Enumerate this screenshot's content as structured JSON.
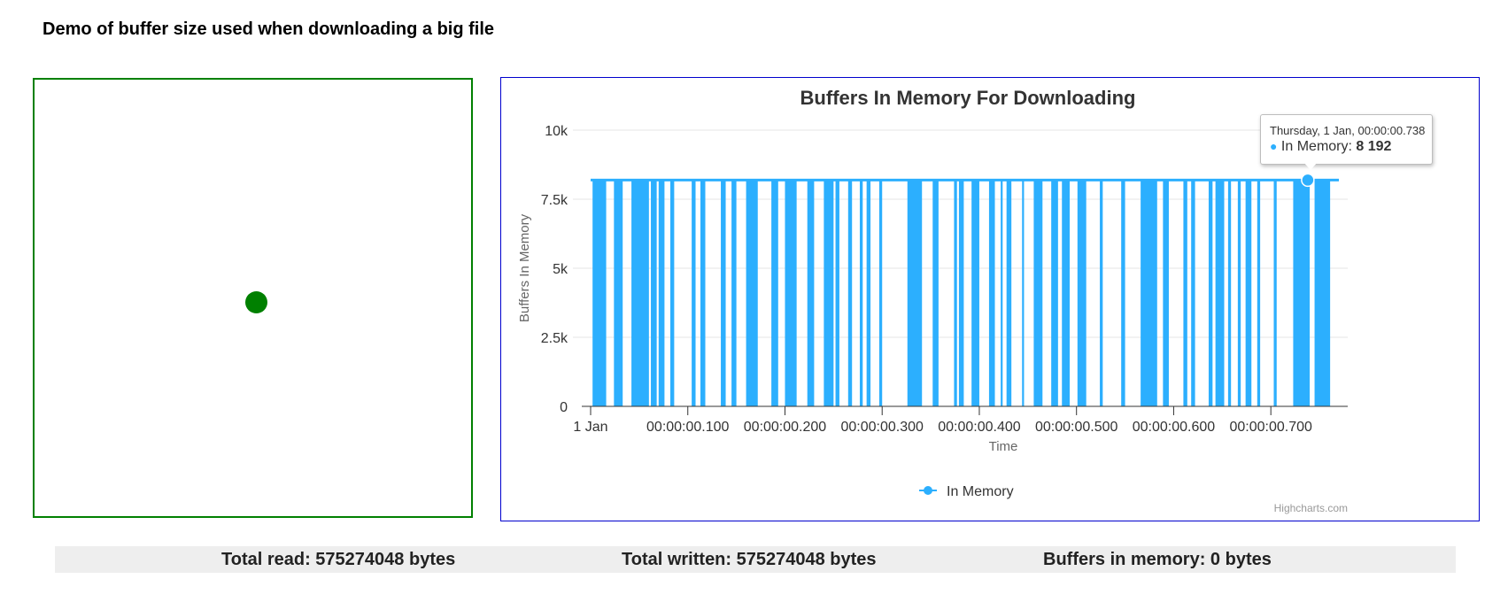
{
  "page": {
    "title": "Demo of buffer size used when downloading a big file"
  },
  "colors": {
    "green": "#008000",
    "series": "#2caffe",
    "chart_border": "#0000cd"
  },
  "stats": {
    "total_read": "Total read: 575274048 bytes",
    "total_written": "Total written: 575274048 bytes",
    "buffers_in_memory": "Buffers in memory: 0 bytes"
  },
  "tooltip": {
    "header": "Thursday, 1 Jan, 00:00:00.738",
    "series_label": "In Memory: ",
    "value_label": "8 192",
    "x": 0.738,
    "y": 8192
  },
  "chart_data": {
    "type": "area",
    "title": "Buffers In Memory For Downloading",
    "xlabel": "Time",
    "ylabel": "Buffers In Memory",
    "credits": "Highcharts.com",
    "xlim": [
      0,
      0.77
    ],
    "ylim": [
      0,
      10000
    ],
    "y_ticks": [
      0,
      2500,
      5000,
      7500,
      10000
    ],
    "y_tick_labels": [
      "0",
      "2.5k",
      "5k",
      "7.5k",
      "10k"
    ],
    "x_ticks": [
      0,
      0.1,
      0.2,
      0.3,
      0.4,
      0.5,
      0.6,
      0.7
    ],
    "x_tick_labels": [
      "1 Jan",
      "00:00:00.100",
      "00:00:00.200",
      "00:00:00.300",
      "00:00:00.400",
      "00:00:00.500",
      "00:00:00.600",
      "00:00:00.700"
    ],
    "legend": {
      "position": "bottom-center",
      "entries": [
        "In Memory"
      ]
    },
    "series": [
      {
        "name": "In Memory",
        "level": 8192,
        "filled_intervals": [
          [
            0.002,
            0.016
          ],
          [
            0.024,
            0.033
          ],
          [
            0.042,
            0.06
          ],
          [
            0.062,
            0.068
          ],
          [
            0.07,
            0.076
          ],
          [
            0.082,
            0.086
          ],
          [
            0.104,
            0.108
          ],
          [
            0.113,
            0.118
          ],
          [
            0.134,
            0.139
          ],
          [
            0.145,
            0.15
          ],
          [
            0.16,
            0.172
          ],
          [
            0.186,
            0.193
          ],
          [
            0.2,
            0.212
          ],
          [
            0.223,
            0.23
          ],
          [
            0.24,
            0.25
          ],
          [
            0.252,
            0.256
          ],
          [
            0.265,
            0.269
          ],
          [
            0.277,
            0.28
          ],
          [
            0.284,
            0.288
          ],
          [
            0.297,
            0.3
          ],
          [
            0.326,
            0.341
          ],
          [
            0.352,
            0.358
          ],
          [
            0.374,
            0.377
          ],
          [
            0.379,
            0.384
          ],
          [
            0.392,
            0.4
          ],
          [
            0.41,
            0.416
          ],
          [
            0.422,
            0.424
          ],
          [
            0.428,
            0.433
          ],
          [
            0.444,
            0.446
          ],
          [
            0.456,
            0.465
          ],
          [
            0.474,
            0.481
          ],
          [
            0.485,
            0.493
          ],
          [
            0.501,
            0.51
          ],
          [
            0.524,
            0.527
          ],
          [
            0.546,
            0.55
          ],
          [
            0.566,
            0.583
          ],
          [
            0.589,
            0.595
          ],
          [
            0.61,
            0.614
          ],
          [
            0.618,
            0.622
          ],
          [
            0.636,
            0.64
          ],
          [
            0.643,
            0.652
          ],
          [
            0.656,
            0.659
          ],
          [
            0.666,
            0.669
          ],
          [
            0.674,
            0.68
          ],
          [
            0.686,
            0.689
          ],
          [
            0.703,
            0.706
          ],
          [
            0.723,
            0.74
          ],
          [
            0.745,
            0.761
          ]
        ]
      }
    ]
  }
}
